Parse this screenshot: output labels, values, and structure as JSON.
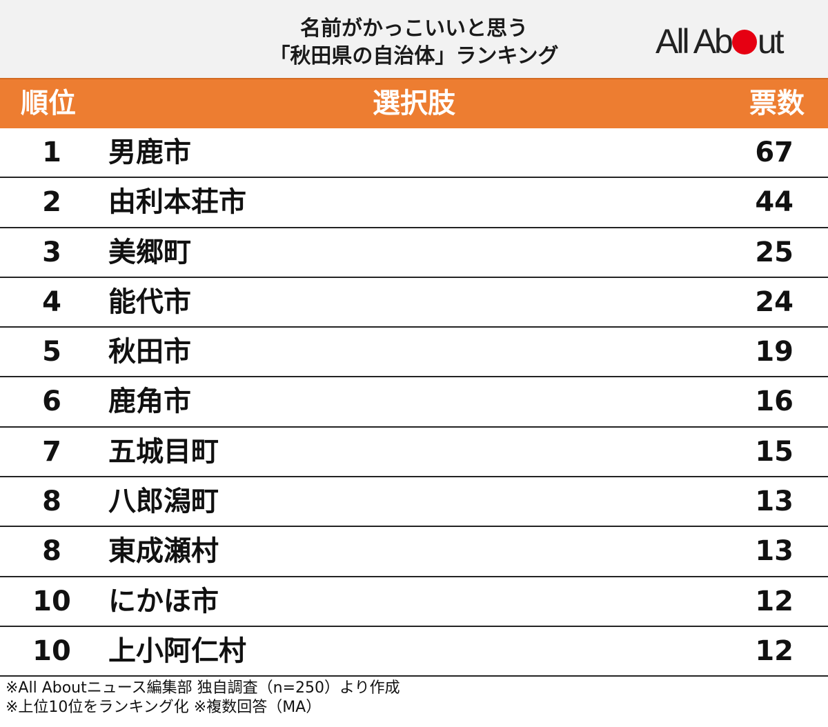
{
  "header": {
    "title_line1": "名前がかっこいいと思う",
    "title_line2": "「秋田県の自治体」ランキング",
    "logo_text_before": "All Ab",
    "logo_text_after": "ut",
    "logo_dot_color": "#e60012"
  },
  "table": {
    "columns": {
      "rank": "順位",
      "choice": "選択肢",
      "votes": "票数"
    },
    "header_color": "#ed7d31",
    "rows": [
      {
        "rank": "1",
        "name": "男鹿市",
        "votes": "67"
      },
      {
        "rank": "2",
        "name": "由利本荘市",
        "votes": "44"
      },
      {
        "rank": "3",
        "name": "美郷町",
        "votes": "25"
      },
      {
        "rank": "4",
        "name": "能代市",
        "votes": "24"
      },
      {
        "rank": "5",
        "name": "秋田市",
        "votes": "19"
      },
      {
        "rank": "6",
        "name": "鹿角市",
        "votes": "16"
      },
      {
        "rank": "7",
        "name": "五城目町",
        "votes": "15"
      },
      {
        "rank": "8",
        "name": "八郎潟町",
        "votes": "13"
      },
      {
        "rank": "8",
        "name": "東成瀬村",
        "votes": "13"
      },
      {
        "rank": "10",
        "name": "にかほ市",
        "votes": "12"
      },
      {
        "rank": "10",
        "name": "上小阿仁村",
        "votes": "12"
      }
    ]
  },
  "notes": {
    "line1": "※All Aboutニュース編集部 独自調査（n=250）より作成",
    "line2": "※上位10位をランキング化 ※複数回答（MA）"
  }
}
